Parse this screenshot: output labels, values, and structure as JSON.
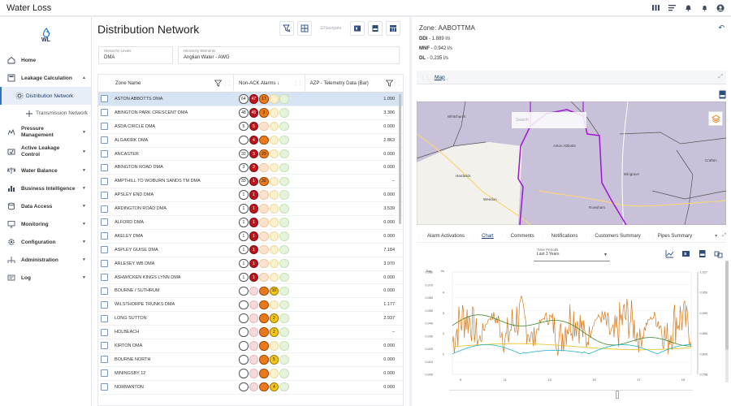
{
  "app": {
    "title": "Water Loss"
  },
  "sidebar": {
    "logo_text": "WL",
    "items": [
      {
        "label": "Home",
        "icon": "home-icon"
      },
      {
        "label": "Leakage Calculation",
        "icon": "calculator-icon"
      },
      {
        "label": "Distribution Network",
        "icon": "network-icon"
      },
      {
        "label": "Transmission Network",
        "icon": "pipe-network-icon"
      },
      {
        "label": "Pressure Management",
        "icon": "pressure-icon"
      },
      {
        "label": "Active Leakage Control",
        "icon": "leak-control-icon"
      },
      {
        "label": "Water Balance",
        "icon": "water-balance-icon"
      },
      {
        "label": "Business Intelligence",
        "icon": "bar-chart-icon"
      },
      {
        "label": "Data Access",
        "icon": "database-icon"
      },
      {
        "label": "Monitoring",
        "icon": "monitor-icon"
      },
      {
        "label": "Configuration",
        "icon": "gear-icon"
      },
      {
        "label": "Administration",
        "icon": "admin-icon"
      },
      {
        "label": "Log",
        "icon": "log-icon"
      }
    ]
  },
  "main": {
    "title": "Distribution Network",
    "toolbar": {
      "navigate": "Navigate"
    },
    "hierarchy_levels": {
      "label": "Hierarchy Levels",
      "value": "DMA"
    },
    "hierarchy_elements": {
      "label": "Hierarchy Elements",
      "value": "Anglian Water - AWG"
    },
    "grid": {
      "columns": {
        "zone": "Zone Name",
        "alarms": "Non-ACK Alarms ↓",
        "azp": "AZP - Telemetry Data (Bar)"
      },
      "rows": [
        {
          "name": "ASTON ABBOTTS DMA",
          "count": "64",
          "red": "47",
          "orange": "17",
          "azp": "1.090",
          "style": "a"
        },
        {
          "name": "ABINGTON PARK CRESCENT DMA",
          "count": "48",
          "red": "45",
          "orange": "3",
          "azp": "3.306",
          "style": "a"
        },
        {
          "name": "ASDA CIRCLE DMA",
          "count": "5",
          "red": "5",
          "orange": "",
          "azp": "0.000",
          "style": "b"
        },
        {
          "name": "ALGAKIRK DMA",
          "count": "4",
          "red": "4",
          "orange": "",
          "azp": "2.863",
          "style": "c"
        },
        {
          "name": "ANCASTER",
          "count": "32",
          "red": "3",
          "orange": "29",
          "azp": "0.000",
          "style": "a"
        },
        {
          "name": "ABINGTON ROAD DMA",
          "count": "3",
          "red": "3",
          "orange": "",
          "azp": "0.000",
          "style": "b"
        },
        {
          "name": "AMPTHILL TO WOBURN SANDS TM DMA",
          "count": "33",
          "red": "1",
          "orange": "32",
          "azp": "–",
          "style": "a"
        },
        {
          "name": "APSLEY END DMA",
          "count": "1",
          "red": "1",
          "orange": "",
          "azp": "0.000",
          "style": "b"
        },
        {
          "name": "ARDINGTON ROAD DMA",
          "count": "1",
          "red": "1",
          "orange": "",
          "azp": "3.539",
          "style": "b"
        },
        {
          "name": "ALFORD DMA",
          "count": "1",
          "red": "1",
          "orange": "",
          "azp": "0.000",
          "style": "b"
        },
        {
          "name": "AKELEY DMA",
          "count": "1",
          "red": "1",
          "orange": "",
          "azp": "0.000",
          "style": "b"
        },
        {
          "name": "ASPLEY GUISE DMA",
          "count": "1",
          "red": "1",
          "orange": "",
          "azp": "7.184",
          "style": "b"
        },
        {
          "name": "ARLESEY WB DMA",
          "count": "1",
          "red": "1",
          "orange": "",
          "azp": "3.970",
          "style": "b"
        },
        {
          "name": "ASHWICKEN KINGS LYNN DMA",
          "count": "1",
          "red": "1",
          "orange": "",
          "azp": "0.000",
          "style": "b"
        },
        {
          "name": "BOURNE / SUTHRUM",
          "count": "",
          "red": "",
          "orange": "",
          "yellow": "10",
          "azp": "0.000",
          "style": "y"
        },
        {
          "name": "WILSTHORPE TRUNKS DMA",
          "count": "",
          "red": "",
          "orange": "",
          "yellow": "",
          "azp": "1.177",
          "style": "o"
        },
        {
          "name": "LONG SUTTON",
          "count": "",
          "red": "",
          "orange": "",
          "yellow": "2",
          "azp": "2.937",
          "style": "y"
        },
        {
          "name": "HOLBEACH",
          "count": "",
          "red": "",
          "orange": "",
          "yellow": "2",
          "azp": "–",
          "style": "y"
        },
        {
          "name": "KIRTON DMA",
          "count": "",
          "red": "",
          "orange": "",
          "yellow": "",
          "azp": "0.000",
          "style": "o"
        },
        {
          "name": "BOURNE NORTH",
          "count": "",
          "red": "",
          "orange": "",
          "yellow": "5",
          "azp": "0.000",
          "style": "y"
        },
        {
          "name": "MININGSBY 12",
          "count": "",
          "red": "",
          "orange": "",
          "yellow": "",
          "azp": "0.000",
          "style": "o"
        },
        {
          "name": "NORMANTON",
          "count": "",
          "red": "",
          "orange": "",
          "yellow": "4",
          "azp": "0.000",
          "style": "y"
        }
      ]
    }
  },
  "zone": {
    "title": "Zone: AABOTTMA",
    "ddi_label": "DDI",
    "ddi_value": "- 1.889 l/s",
    "mnf_label": "MNF",
    "mnf_value": "- 0.942 l/s",
    "dl_label": "DL",
    "dl_value": "- 0.235 l/s",
    "map_title": "Map",
    "map_search_placeholder": "Search",
    "map_labels": [
      "Whitchurch",
      "Aston Abbotts",
      "Wingrave",
      "Hardwick",
      "Weedon",
      "Rowsham",
      "Crafton"
    ],
    "tabs": [
      "Alarm Activations",
      "Chart",
      "Comments",
      "Notifications",
      "Customers Summary",
      "Pipes Summary"
    ],
    "active_tab": "Chart",
    "time_period": {
      "label": "Time Periods",
      "value": "Last 3 Years"
    }
  },
  "chart_data": {
    "type": "line",
    "x_ticks": [
      "9",
      "11",
      "13",
      "15",
      "17",
      "19"
    ],
    "y_left_label": "Bar",
    "y_left_ticks": [
      "0.000",
      "0.010",
      "0.020",
      "0.030",
      "0.040",
      "0.050",
      "0.060",
      "0.070",
      "0.080"
    ],
    "y_mid_label": "l/s",
    "y_mid_ticks": [
      "1",
      "2",
      "3",
      "4"
    ],
    "y_right_ticks": [
      "0.758",
      "0.800",
      "0.850",
      "0.900",
      "0.950",
      "1.027"
    ],
    "series": [
      {
        "color": "#d47a1c"
      },
      {
        "color": "#3d8a2e"
      },
      {
        "color": "#e8c21c"
      },
      {
        "color": "#23b3c6"
      }
    ],
    "ylim_mid": [
      0,
      5
    ]
  },
  "colors": {
    "accent": "#2d74c5",
    "district": "#a21fd0",
    "alarm_red": "#c0141c",
    "alarm_orange": "#e87a1b",
    "alarm_yellow": "#f5c518"
  }
}
